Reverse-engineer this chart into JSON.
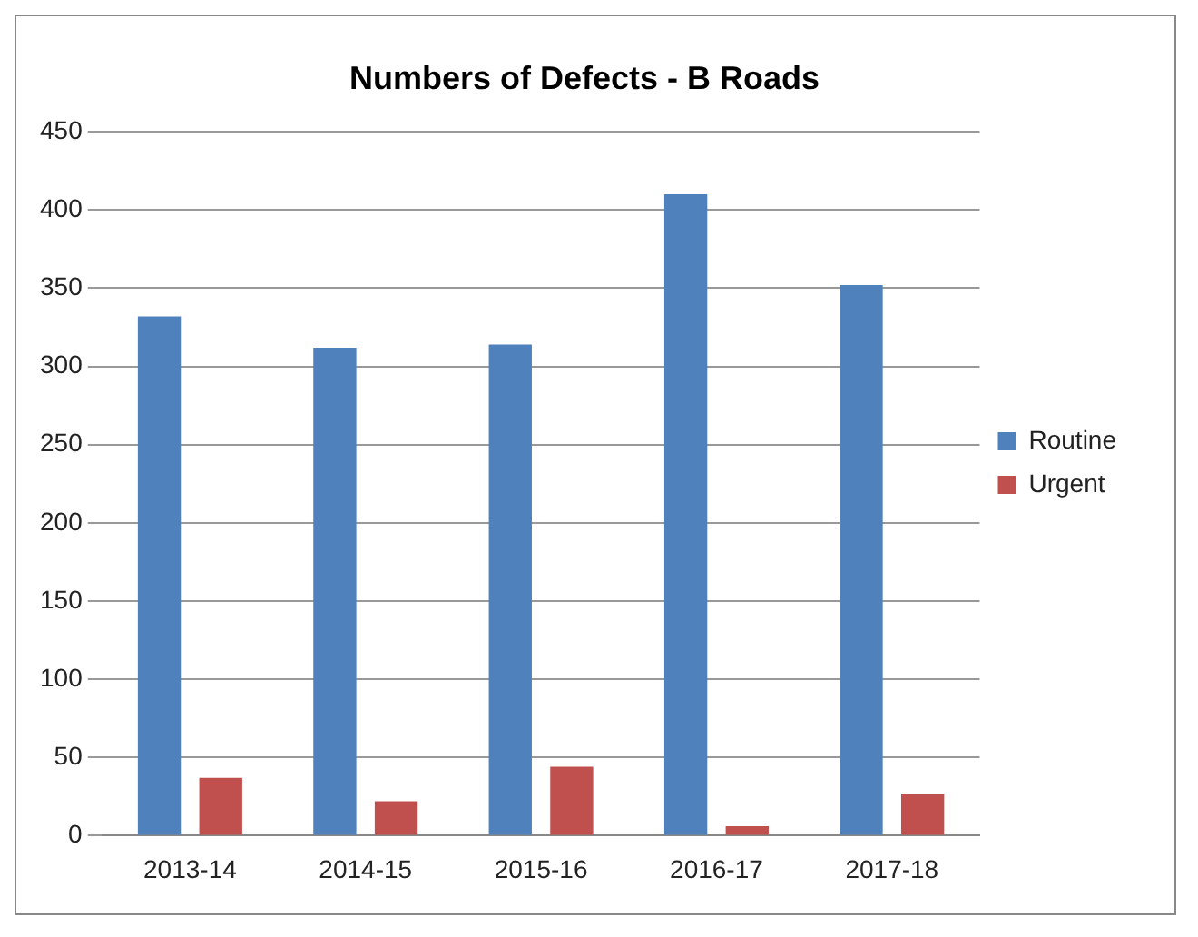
{
  "chart_data": {
    "type": "bar",
    "title": "Numbers of Defects - B Roads",
    "categories": [
      "2013-14",
      "2014-15",
      "2015-16",
      "2016-17",
      "2017-18"
    ],
    "series": [
      {
        "name": "Routine",
        "color": "#4f81bd",
        "values": [
          332,
          312,
          314,
          410,
          352
        ]
      },
      {
        "name": "Urgent",
        "color": "#c0504d",
        "values": [
          37,
          22,
          44,
          6,
          27
        ]
      }
    ],
    "ylim": [
      0,
      450
    ],
    "yticks": [
      0,
      50,
      100,
      150,
      200,
      250,
      300,
      350,
      400,
      450
    ],
    "grid": "y",
    "legend": "right"
  }
}
